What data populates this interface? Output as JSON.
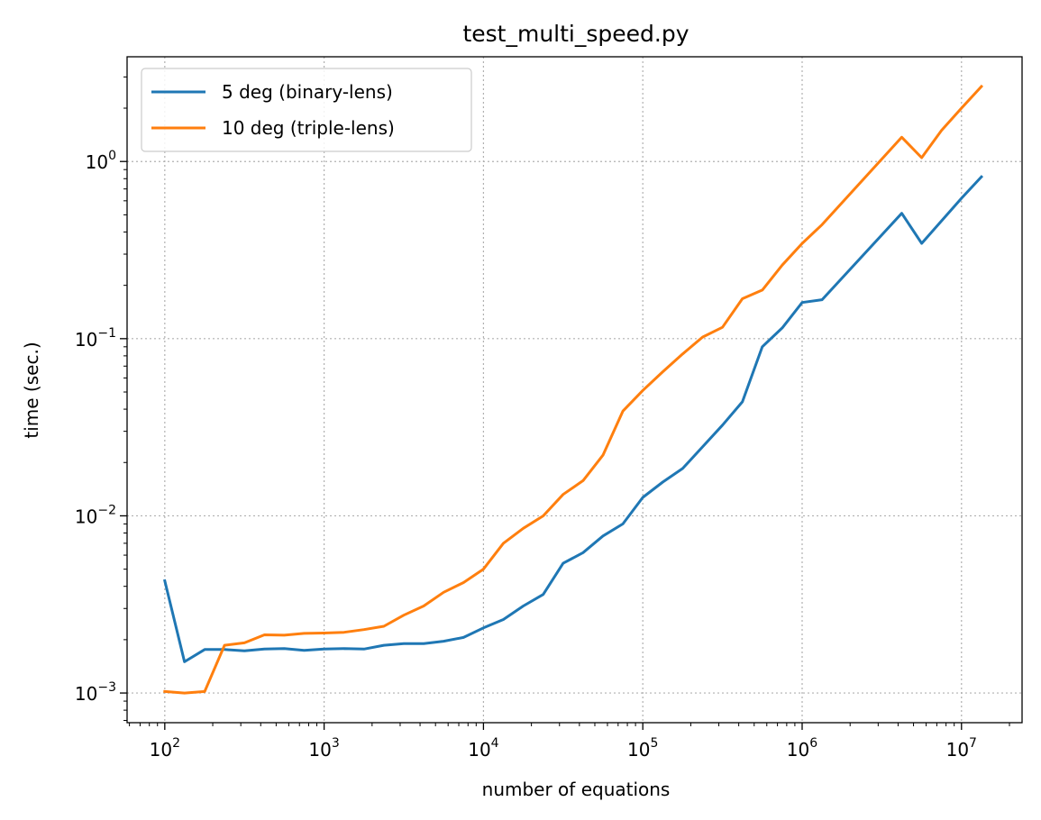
{
  "chart_data": {
    "type": "line",
    "title": "test_multi_speed.py",
    "xlabel": "number of equations",
    "ylabel": "time (sec.)",
    "xscale": "log",
    "yscale": "log",
    "xlim": [
      58,
      24000000
    ],
    "ylim": [
      0.00068,
      3.9
    ],
    "grid": true,
    "legend_position": "top-left",
    "x_ticks": [
      {
        "base": "10",
        "exp": "2",
        "value": 100
      },
      {
        "base": "10",
        "exp": "3",
        "value": 1000
      },
      {
        "base": "10",
        "exp": "4",
        "value": 10000
      },
      {
        "base": "10",
        "exp": "5",
        "value": 100000
      },
      {
        "base": "10",
        "exp": "6",
        "value": 1000000
      },
      {
        "base": "10",
        "exp": "7",
        "value": 10000000
      }
    ],
    "y_ticks": [
      {
        "base": "10",
        "exp": "−3",
        "value": 0.001
      },
      {
        "base": "10",
        "exp": "−2",
        "value": 0.01
      },
      {
        "base": "10",
        "exp": "−1",
        "value": 0.1
      },
      {
        "base": "10",
        "exp": "0",
        "value": 1
      }
    ],
    "series": [
      {
        "name": "5 deg (binary-lens)",
        "color": "#1f77b4",
        "x": [
          100,
          133,
          178,
          237,
          316,
          422,
          562,
          750,
          1000,
          1334,
          1778,
          2371,
          3162,
          4217,
          5623,
          7499,
          10000,
          13335,
          17783,
          23714,
          31623,
          42170,
          56234,
          74989,
          100000,
          133352,
          177828,
          237137,
          316228,
          421697,
          562341,
          749894,
          1000000,
          1333521,
          4216965,
          5623413,
          10000000,
          13335214
        ],
        "y": [
          0.0043,
          0.0015,
          0.00176,
          0.00176,
          0.00173,
          0.00177,
          0.00178,
          0.00174,
          0.00177,
          0.00178,
          0.00177,
          0.00186,
          0.0019,
          0.0019,
          0.00196,
          0.00206,
          0.00233,
          0.0026,
          0.0031,
          0.0036,
          0.0054,
          0.0062,
          0.0077,
          0.009,
          0.0127,
          0.0155,
          0.0185,
          0.0245,
          0.0325,
          0.044,
          0.09,
          0.115,
          0.16,
          0.166,
          0.51,
          0.345,
          0.62,
          0.82
        ]
      },
      {
        "name": "10 deg (triple-lens)",
        "color": "#ff7f0e",
        "x": [
          100,
          133,
          178,
          237,
          316,
          422,
          562,
          750,
          1000,
          1334,
          1778,
          2371,
          3162,
          4217,
          5623,
          7499,
          10000,
          13335,
          17783,
          23714,
          31623,
          42170,
          56234,
          74989,
          100000,
          133352,
          177828,
          237137,
          316228,
          421697,
          562341,
          749894,
          1000000,
          1333521,
          4216965,
          5623413,
          7498942,
          10000000,
          13335214
        ],
        "y": [
          0.00102,
          0.001,
          0.00102,
          0.00186,
          0.00192,
          0.00213,
          0.00212,
          0.00217,
          0.00218,
          0.0022,
          0.00228,
          0.00238,
          0.00275,
          0.0031,
          0.0037,
          0.0042,
          0.005,
          0.007,
          0.0085,
          0.01,
          0.0132,
          0.0158,
          0.022,
          0.039,
          0.051,
          0.065,
          0.082,
          0.102,
          0.116,
          0.168,
          0.188,
          0.26,
          0.345,
          0.44,
          1.37,
          1.05,
          1.5,
          2.0,
          2.65
        ]
      }
    ]
  }
}
